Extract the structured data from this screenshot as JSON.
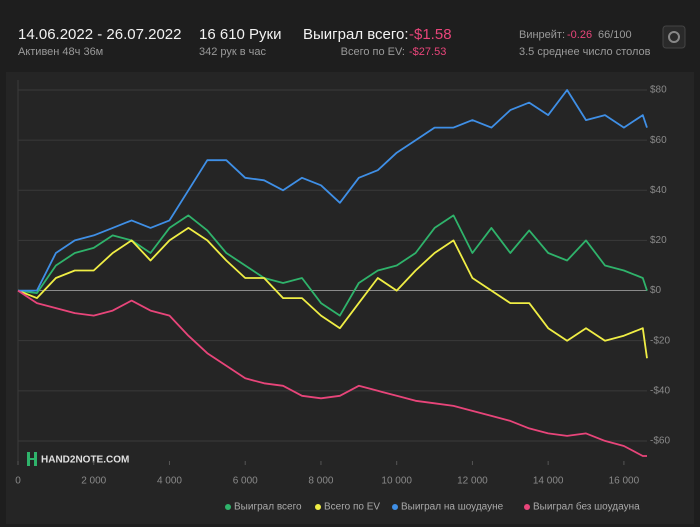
{
  "header": {
    "dates": "14.06.2022 - 26.07.2022",
    "active": "Активен 48ч 36м",
    "hands": "16 610 Руки",
    "per_hour": "342 рук в час",
    "won_label": "Выиграл всего:",
    "won_value": "-$1.58",
    "ev_label": "Всего по EV:",
    "ev_value": "-$27.53",
    "winrate_label": "Винрейт:",
    "winrate_value": "-0.26",
    "winrate_unit": "66/100",
    "tables": "3.5 среднее число столов",
    "logo": "HAND2NOTE.COM"
  },
  "chart_data": {
    "type": "line",
    "x": [
      0,
      500,
      1000,
      1500,
      2000,
      2500,
      3000,
      3500,
      4000,
      4500,
      5000,
      5500,
      6000,
      6500,
      7000,
      7500,
      8000,
      8500,
      9000,
      9500,
      10000,
      10500,
      11000,
      11500,
      12000,
      12500,
      13000,
      13500,
      14000,
      14500,
      15000,
      15500,
      16000,
      16500,
      16610
    ],
    "series": [
      {
        "name": "Выиграл всего",
        "color": "#2fb36b",
        "values": [
          0,
          -1,
          10,
          15,
          17,
          22,
          20,
          15,
          25,
          30,
          24,
          15,
          10,
          5,
          3,
          5,
          -5,
          -10,
          3,
          8,
          10,
          15,
          25,
          30,
          15,
          25,
          15,
          24,
          15,
          12,
          20,
          10,
          8,
          5,
          0
        ]
      },
      {
        "name": "Всего по EV",
        "color": "#f0ee45",
        "values": [
          0,
          -3,
          5,
          8,
          8,
          15,
          20,
          12,
          20,
          25,
          20,
          12,
          5,
          5,
          -3,
          -3,
          -10,
          -15,
          -5,
          5,
          0,
          8,
          15,
          20,
          5,
          0,
          -5,
          -5,
          -15,
          -20,
          -15,
          -20,
          -18,
          -15,
          -27
        ]
      },
      {
        "name": "Выиграл на шоудауне",
        "color": "#3f8fe6",
        "values": [
          0,
          0,
          15,
          20,
          22,
          25,
          28,
          25,
          28,
          40,
          52,
          52,
          45,
          44,
          40,
          45,
          42,
          35,
          45,
          48,
          55,
          60,
          65,
          65,
          68,
          65,
          72,
          75,
          70,
          80,
          68,
          70,
          65,
          70,
          65
        ]
      },
      {
        "name": "Выиграл без шоудауна",
        "color": "#e8457a",
        "values": [
          0,
          -5,
          -7,
          -9,
          -10,
          -8,
          -4,
          -8,
          -10,
          -18,
          -25,
          -30,
          -35,
          -37,
          -38,
          -42,
          -43,
          -42,
          -38,
          -40,
          -42,
          -44,
          -45,
          -46,
          -48,
          -50,
          -52,
          -55,
          -57,
          -58,
          -57,
          -60,
          -62,
          -66,
          -66
        ]
      }
    ],
    "xlim": [
      0,
      16610
    ],
    "xticks": [
      0,
      {
        "value": 2000,
        "label": "2 000"
      },
      {
        "value": 4000,
        "label": "4 000"
      },
      {
        "value": 6000,
        "label": "6 000"
      },
      {
        "value": 8000,
        "label": "8 000"
      },
      {
        "value": 10000,
        "label": "10 000"
      },
      {
        "value": 12000,
        "label": "12 000"
      },
      {
        "value": 14000,
        "label": "14 000"
      },
      {
        "value": 16000,
        "label": "16 000"
      }
    ],
    "ylim": [
      -68,
      84
    ],
    "yticks": [
      {
        "value": -60,
        "label": "-$60"
      },
      {
        "value": -40,
        "label": "-$40"
      },
      {
        "value": -20,
        "label": "-$20"
      },
      {
        "value": 0,
        "label": "$0"
      },
      {
        "value": 20,
        "label": "$20"
      },
      {
        "value": 40,
        "label": "$40"
      },
      {
        "value": 60,
        "label": "$60"
      },
      {
        "value": 80,
        "label": "$80"
      }
    ],
    "grid": true
  }
}
